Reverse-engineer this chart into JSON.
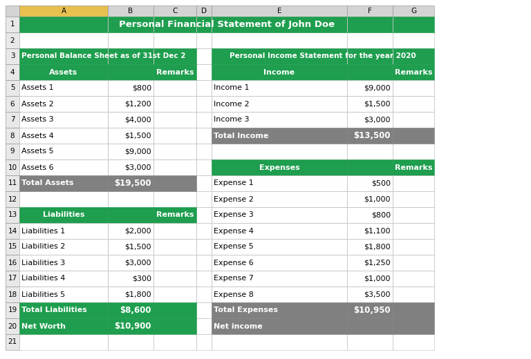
{
  "title": "Personal Financial Statement of John Doe",
  "title_bg": "#1E9E4E",
  "header_green": "#1E9E4E",
  "header_gray": "#808080",
  "balance_sheet_header": "Personal Balance Sheet as of 31st Dec 2",
  "income_header": "Personal Income Statement for the year 2020",
  "assets": [
    [
      "Assets 1",
      "$800"
    ],
    [
      "Assets 2",
      "$1,200"
    ],
    [
      "Assets 3",
      "$4,000"
    ],
    [
      "Assets 4",
      "$1,500"
    ],
    [
      "Assets 5",
      "$9,000"
    ],
    [
      "Assets 6",
      "$3,000"
    ]
  ],
  "assets_total": [
    "Total Assets",
    "$19,500"
  ],
  "liabilities": [
    [
      "Liabilities 1",
      "$2,000"
    ],
    [
      "Liabilities 2",
      "$1,500"
    ],
    [
      "Liabilities 3",
      "$3,000"
    ],
    [
      "Liabilities 4",
      "$300"
    ],
    [
      "Liabilities 5",
      "$1,800"
    ]
  ],
  "liabilities_total": [
    "Total Liabilities",
    "$8,600"
  ],
  "net_worth": [
    "Net Worth",
    "$10,900"
  ],
  "income": [
    [
      "Income 1",
      "$9,000"
    ],
    [
      "Income 2",
      "$1,500"
    ],
    [
      "Income 3",
      "$3,000"
    ]
  ],
  "income_total": [
    "Total Income",
    "$13,500"
  ],
  "expenses": [
    [
      "Expense 1",
      "$500"
    ],
    [
      "Expense 2",
      "$1,000"
    ],
    [
      "Expense 3",
      "$800"
    ],
    [
      "Expense 4",
      "$1,100"
    ],
    [
      "Expense 5",
      "$1,800"
    ],
    [
      "Expense 6",
      "$1,250"
    ],
    [
      "Expense 7",
      "$1,000"
    ],
    [
      "Expense 8",
      "$3,500"
    ]
  ],
  "expenses_total": [
    "Total Expenses",
    "$10,950"
  ],
  "net_income": [
    "Net income",
    ""
  ]
}
